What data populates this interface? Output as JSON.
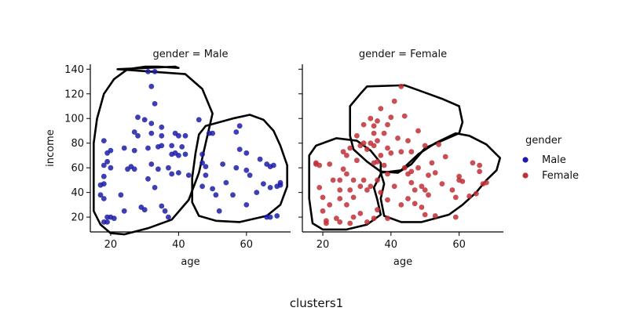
{
  "figure": {
    "caption": "clusters1"
  },
  "chart_data": {
    "type": "scatter",
    "x_label": "age",
    "y_label": "income",
    "x_ticks": [
      20,
      40,
      60
    ],
    "y_ticks": [
      20,
      40,
      60,
      80,
      100,
      120,
      140
    ],
    "xlim": [
      14,
      73
    ],
    "ylim": [
      8,
      144
    ],
    "legend": {
      "title": "gender",
      "placement": "right",
      "entries": [
        {
          "label": "Male",
          "color": "#1c1ca8"
        },
        {
          "label": "Female",
          "color": "#c03036"
        }
      ]
    },
    "panels": [
      {
        "title": "gender = Male",
        "series": "Male",
        "color": "#1c1ca8",
        "points": [
          [
            18,
            16
          ],
          [
            19,
            20
          ],
          [
            19,
            16
          ],
          [
            20,
            20
          ],
          [
            21,
            19
          ],
          [
            18,
            35
          ],
          [
            18,
            47
          ],
          [
            17,
            46
          ],
          [
            17,
            38
          ],
          [
            18,
            53
          ],
          [
            18,
            62
          ],
          [
            19,
            65
          ],
          [
            19,
            72
          ],
          [
            18,
            82
          ],
          [
            20,
            60
          ],
          [
            20,
            74
          ],
          [
            23,
            38
          ],
          [
            24,
            25
          ],
          [
            25,
            59
          ],
          [
            24,
            76
          ],
          [
            26,
            61
          ],
          [
            27,
            74
          ],
          [
            27,
            59
          ],
          [
            27,
            89
          ],
          [
            28,
            101
          ],
          [
            28,
            86
          ],
          [
            29,
            28
          ],
          [
            30,
            99
          ],
          [
            31,
            138
          ],
          [
            33,
            138
          ],
          [
            32,
            126
          ],
          [
            32,
            96
          ],
          [
            33,
            112
          ],
          [
            32,
            88
          ],
          [
            31,
            76
          ],
          [
            32,
            63
          ],
          [
            31,
            51
          ],
          [
            30,
            26
          ],
          [
            33,
            44
          ],
          [
            34,
            59
          ],
          [
            34,
            77
          ],
          [
            35,
            78
          ],
          [
            35,
            93
          ],
          [
            35,
            86
          ],
          [
            35,
            29
          ],
          [
            36,
            25
          ],
          [
            37,
            20
          ],
          [
            37,
            60
          ],
          [
            38,
            78
          ],
          [
            38,
            71
          ],
          [
            39,
            88
          ],
          [
            40,
            86
          ],
          [
            40,
            70
          ],
          [
            39,
            72
          ],
          [
            40,
            56
          ],
          [
            38,
            55
          ],
          [
            41,
            77
          ],
          [
            42,
            86
          ],
          [
            42,
            71
          ],
          [
            43,
            54
          ],
          [
            46,
            99
          ],
          [
            47,
            64
          ],
          [
            47,
            71
          ],
          [
            48,
            61
          ],
          [
            48,
            54
          ],
          [
            47,
            45
          ],
          [
            49,
            88
          ],
          [
            50,
            88
          ],
          [
            50,
            43
          ],
          [
            51,
            38
          ],
          [
            52,
            25
          ],
          [
            53,
            63
          ],
          [
            54,
            48
          ],
          [
            56,
            38
          ],
          [
            57,
            60
          ],
          [
            57,
            89
          ],
          [
            58,
            94
          ],
          [
            58,
            75
          ],
          [
            60,
            72
          ],
          [
            60,
            58
          ],
          [
            60,
            30
          ],
          [
            61,
            54
          ],
          [
            63,
            40
          ],
          [
            64,
            67
          ],
          [
            65,
            47
          ],
          [
            66,
            63
          ],
          [
            67,
            61
          ],
          [
            66,
            20
          ],
          [
            67,
            44
          ],
          [
            67,
            20
          ],
          [
            68,
            62
          ],
          [
            69,
            45
          ],
          [
            70,
            46
          ],
          [
            70,
            48
          ],
          [
            69,
            21
          ]
        ],
        "outlines": [
          [
            [
              22,
              140
            ],
            [
              39,
              142
            ],
            [
              40,
              141
            ],
            [
              34,
              142
            ],
            [
              30,
              142
            ],
            [
              25,
              140
            ],
            [
              21,
              132
            ],
            [
              18,
              120
            ],
            [
              16,
              100
            ],
            [
              15,
              80
            ],
            [
              15,
              60
            ],
            [
              15,
              40
            ],
            [
              15,
              25
            ],
            [
              17,
              14
            ],
            [
              20,
              7
            ],
            [
              24,
              6
            ],
            [
              31,
              11
            ],
            [
              38,
              18
            ],
            [
              43,
              34
            ],
            [
              46,
              56
            ],
            [
              48,
              80
            ],
            [
              50,
              104
            ],
            [
              47,
              124
            ],
            [
              42,
              136
            ]
          ],
          [
            [
              48,
              94
            ],
            [
              56,
              100
            ],
            [
              61,
              103
            ],
            [
              65,
              99
            ],
            [
              68,
              90
            ],
            [
              70,
              78
            ],
            [
              72,
              62
            ],
            [
              72,
              45
            ],
            [
              70,
              30
            ],
            [
              66,
              21
            ],
            [
              58,
              16
            ],
            [
              51,
              17
            ],
            [
              46,
              21
            ],
            [
              44,
              32
            ],
            [
              44,
              52
            ],
            [
              45,
              72
            ],
            [
              46,
              87
            ]
          ]
        ]
      },
      {
        "title": "gender = Female",
        "series": "Female",
        "color": "#c03036",
        "points": [
          [
            18,
            63
          ],
          [
            18,
            64
          ],
          [
            19,
            62
          ],
          [
            19,
            44
          ],
          [
            20,
            25
          ],
          [
            20,
            36
          ],
          [
            21,
            17
          ],
          [
            21,
            15
          ],
          [
            22,
            63
          ],
          [
            22,
            30
          ],
          [
            23,
            50
          ],
          [
            24,
            19
          ],
          [
            25,
            50
          ],
          [
            25,
            42
          ],
          [
            25,
            35
          ],
          [
            25,
            16
          ],
          [
            26,
            59
          ],
          [
            26,
            73
          ],
          [
            27,
            70
          ],
          [
            28,
            76
          ],
          [
            27,
            55
          ],
          [
            27,
            30
          ],
          [
            28,
            42
          ],
          [
            28,
            15
          ],
          [
            29,
            50
          ],
          [
            29,
            36
          ],
          [
            29,
            20
          ],
          [
            30,
            86
          ],
          [
            30,
            66
          ],
          [
            31,
            78
          ],
          [
            31,
            45
          ],
          [
            31,
            23
          ],
          [
            32,
            95
          ],
          [
            32,
            80
          ],
          [
            32,
            50
          ],
          [
            33,
            75
          ],
          [
            33,
            42
          ],
          [
            33,
            16
          ],
          [
            34,
            100
          ],
          [
            34,
            80
          ],
          [
            34,
            45
          ],
          [
            35,
            94
          ],
          [
            35,
            88
          ],
          [
            35,
            78
          ],
          [
            35,
            64
          ],
          [
            35,
            19
          ],
          [
            36,
            98
          ],
          [
            36,
            82
          ],
          [
            36,
            65
          ],
          [
            36,
            50
          ],
          [
            36,
            26
          ],
          [
            37,
            108
          ],
          [
            37,
            70
          ],
          [
            37,
            40
          ],
          [
            38,
            88
          ],
          [
            38,
            62
          ],
          [
            39,
            95
          ],
          [
            39,
            76
          ],
          [
            39,
            55
          ],
          [
            39,
            34
          ],
          [
            39,
            19
          ],
          [
            40,
            101
          ],
          [
            40,
            72
          ],
          [
            41,
            114
          ],
          [
            41,
            45
          ],
          [
            42,
            84
          ],
          [
            43,
            126
          ],
          [
            43,
            73
          ],
          [
            43,
            30
          ],
          [
            44,
            102
          ],
          [
            44,
            60
          ],
          [
            45,
            82
          ],
          [
            45,
            55
          ],
          [
            45,
            35
          ],
          [
            46,
            73
          ],
          [
            46,
            57
          ],
          [
            46,
            48
          ],
          [
            47,
            42
          ],
          [
            47,
            31
          ],
          [
            48,
            90
          ],
          [
            48,
            60
          ],
          [
            49,
            45
          ],
          [
            49,
            28
          ],
          [
            50,
            78
          ],
          [
            50,
            42
          ],
          [
            50,
            22
          ],
          [
            51,
            54
          ],
          [
            51,
            38
          ],
          [
            52,
            64
          ],
          [
            53,
            56
          ],
          [
            53,
            21
          ],
          [
            54,
            79
          ],
          [
            55,
            47
          ],
          [
            56,
            69
          ],
          [
            58,
            42
          ],
          [
            59,
            36
          ],
          [
            59,
            20
          ],
          [
            60,
            53
          ],
          [
            60,
            50
          ],
          [
            61,
            49
          ],
          [
            63,
            37
          ],
          [
            64,
            64
          ],
          [
            65,
            39
          ],
          [
            66,
            57
          ],
          [
            66,
            62
          ],
          [
            67,
            47
          ],
          [
            68,
            48
          ]
        ],
        "outlines": [
          [
            [
              33,
              126
            ],
            [
              44,
              127
            ],
            [
              50,
              121
            ],
            [
              55,
              116
            ],
            [
              60,
              110
            ],
            [
              61,
              97
            ],
            [
              60,
              88
            ],
            [
              55,
              82
            ],
            [
              50,
              76
            ],
            [
              46,
              63
            ],
            [
              42,
              56
            ],
            [
              37,
              57
            ],
            [
              33,
              65
            ],
            [
              29,
              75
            ],
            [
              28,
              86
            ],
            [
              28,
              97
            ],
            [
              28,
              110
            ],
            [
              31,
              120
            ]
          ],
          [
            [
              18,
              78
            ],
            [
              24,
              84
            ],
            [
              30,
              82
            ],
            [
              34,
              74
            ],
            [
              37,
              64
            ],
            [
              37,
              55
            ],
            [
              35,
              44
            ],
            [
              36,
              34
            ],
            [
              37,
              22
            ],
            [
              33,
              14
            ],
            [
              27,
              10
            ],
            [
              20,
              10
            ],
            [
              17,
              15
            ],
            [
              16,
              35
            ],
            [
              16,
              55
            ],
            [
              16,
              70
            ]
          ],
          [
            [
              37,
              56
            ],
            [
              43,
              58
            ],
            [
              48,
              71
            ],
            [
              53,
              80
            ],
            [
              59,
              88
            ],
            [
              63,
              86
            ],
            [
              68,
              79
            ],
            [
              72,
              68
            ],
            [
              71,
              58
            ],
            [
              68,
              50
            ],
            [
              65,
              40
            ],
            [
              61,
              30
            ],
            [
              57,
              22
            ],
            [
              49,
              16
            ],
            [
              43,
              16
            ],
            [
              38,
              21
            ],
            [
              37,
              35
            ],
            [
              38,
              47
            ]
          ]
        ]
      }
    ]
  }
}
